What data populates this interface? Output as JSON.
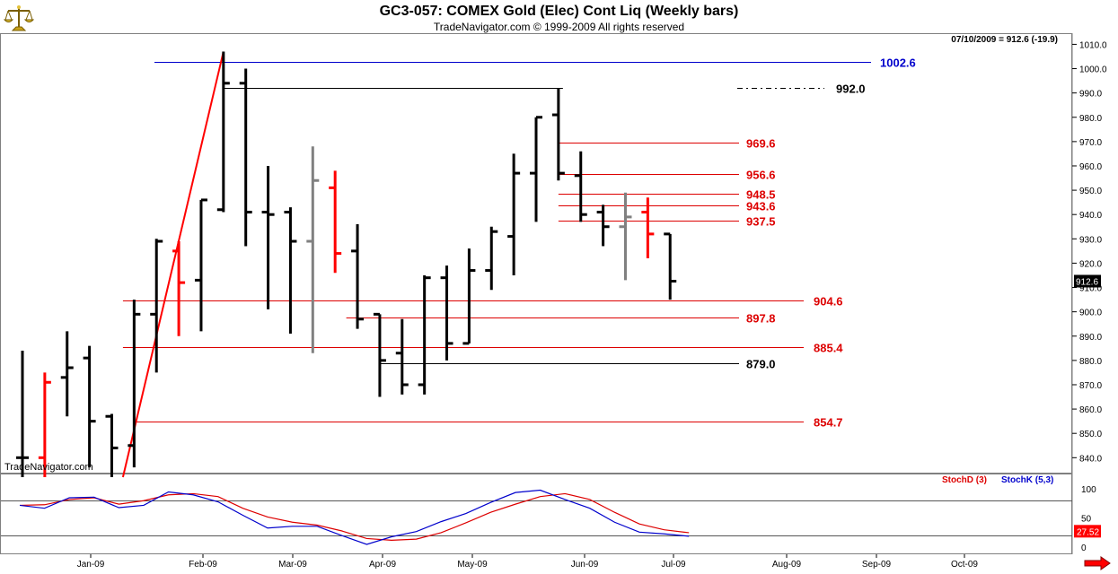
{
  "header": {
    "title": "GC3-057:  COMEX Gold (Elec) Cont Liq  (Weekly bars)",
    "subtitle": "TradeNavigator.com © 1999-2009 All rights reserved",
    "last_info": "07/10/2009 = 912.6 (-19.9)",
    "watermark": "TradeNavigator.com"
  },
  "colors": {
    "up": "#000000",
    "down": "#ff0000",
    "inside": "#808080",
    "blue": "#0000cc",
    "level_red": "#dd0000",
    "stochD": "#dd0000",
    "stochK": "#0000cc"
  },
  "chart_data": [
    {
      "type": "ohlc",
      "title": "GC3-057:  COMEX Gold (Elec) Cont Liq  (Weekly bars)",
      "ylim": [
        832,
        1012
      ],
      "y_ticks": [
        840,
        850,
        860,
        870,
        880,
        890,
        900,
        910,
        920,
        930,
        940,
        950,
        960,
        970,
        980,
        990,
        1000,
        1010
      ],
      "x_labels": [
        "Jan-09",
        "Feb-09",
        "Mar-09",
        "Apr-09",
        "May-09",
        "Jun-09",
        "Jul-09",
        "Aug-09",
        "Sep-09",
        "Oct-09"
      ],
      "last_price": "912.6",
      "bars": [
        {
          "week": 1,
          "open": 840,
          "high": 884,
          "low": 832,
          "close": 840,
          "color": "up"
        },
        {
          "week": 2,
          "open": 840,
          "high": 875,
          "low": 832,
          "close": 871,
          "color": "down"
        },
        {
          "week": 3,
          "open": 873,
          "high": 892,
          "low": 857,
          "close": 877,
          "color": "up"
        },
        {
          "week": 4,
          "open": 881,
          "high": 886,
          "low": 836,
          "close": 855,
          "color": "up"
        },
        {
          "week": 5,
          "open": 857,
          "high": 858,
          "low": 832,
          "close": 844,
          "color": "up"
        },
        {
          "week": 6,
          "open": 845,
          "high": 905,
          "low": 836,
          "close": 899,
          "color": "up"
        },
        {
          "week": 7,
          "open": 899,
          "high": 930,
          "low": 875,
          "close": 929,
          "color": "up"
        },
        {
          "week": 8,
          "open": 925,
          "high": 929,
          "low": 890,
          "close": 912,
          "color": "down"
        },
        {
          "week": 9,
          "open": 913,
          "high": 946,
          "low": 892,
          "close": 946,
          "color": "up"
        },
        {
          "week": 10,
          "open": 942,
          "high": 1007,
          "low": 941,
          "close": 994,
          "color": "up"
        },
        {
          "week": 11,
          "open": 994,
          "high": 1000,
          "low": 927,
          "close": 941,
          "color": "up"
        },
        {
          "week": 12,
          "open": 941,
          "high": 960,
          "low": 901,
          "close": 940,
          "color": "up"
        },
        {
          "week": 13,
          "open": 941,
          "high": 943,
          "low": 891,
          "close": 929,
          "color": "up"
        },
        {
          "week": 14,
          "open": 929,
          "high": 968,
          "low": 883,
          "close": 954,
          "color": "inside"
        },
        {
          "week": 15,
          "open": 951,
          "high": 958,
          "low": 916,
          "close": 924,
          "color": "down"
        },
        {
          "week": 16,
          "open": 925,
          "high": 936,
          "low": 893,
          "close": 897,
          "color": "up"
        },
        {
          "week": 17,
          "open": 899,
          "high": 899,
          "low": 865,
          "close": 880,
          "color": "up"
        },
        {
          "week": 18,
          "open": 883,
          "high": 897,
          "low": 866,
          "close": 870,
          "color": "up"
        },
        {
          "week": 19,
          "open": 870,
          "high": 915,
          "low": 866,
          "close": 914,
          "color": "up"
        },
        {
          "week": 20,
          "open": 914,
          "high": 919,
          "low": 880,
          "close": 887,
          "color": "up"
        },
        {
          "week": 21,
          "open": 887,
          "high": 926,
          "low": 887,
          "close": 917,
          "color": "up"
        },
        {
          "week": 22,
          "open": 917,
          "high": 935,
          "low": 909,
          "close": 933,
          "color": "up"
        },
        {
          "week": 23,
          "open": 931,
          "high": 965,
          "low": 915,
          "close": 957,
          "color": "up"
        },
        {
          "week": 24,
          "open": 957,
          "high": 980,
          "low": 937,
          "close": 980,
          "color": "up"
        },
        {
          "week": 25,
          "open": 981,
          "high": 992,
          "low": 954,
          "close": 957,
          "color": "up"
        },
        {
          "week": 26,
          "open": 956,
          "high": 966,
          "low": 937,
          "close": 940,
          "color": "up"
        },
        {
          "week": 27,
          "open": 941,
          "high": 944,
          "low": 927,
          "close": 935,
          "color": "up"
        },
        {
          "week": 28,
          "open": 935,
          "high": 949,
          "low": 913,
          "close": 939,
          "color": "inside"
        },
        {
          "week": 29,
          "open": 941,
          "high": 947,
          "low": 922,
          "close": 932,
          "color": "down"
        },
        {
          "week": 30,
          "open": 932,
          "high": 932,
          "low": 905,
          "close": 912.6,
          "color": "up"
        }
      ],
      "levels": [
        {
          "label": "1002.6",
          "value": 1002.6,
          "color": "blue"
        },
        {
          "label": "992.0",
          "value": 992.0,
          "color": "black"
        },
        {
          "label": "969.6",
          "value": 969.6,
          "color": "level_red"
        },
        {
          "label": "956.6",
          "value": 956.6,
          "color": "level_red"
        },
        {
          "label": "948.5",
          "value": 948.5,
          "color": "level_red"
        },
        {
          "label": "943.6",
          "value": 943.6,
          "color": "level_red"
        },
        {
          "label": "937.5",
          "value": 937.5,
          "color": "level_red"
        },
        {
          "label": "904.6",
          "value": 904.6,
          "color": "level_red"
        },
        {
          "label": "897.8",
          "value": 897.8,
          "color": "level_red"
        },
        {
          "label": "885.4",
          "value": 885.4,
          "color": "level_red"
        },
        {
          "label": "879.0",
          "value": 879.0,
          "color": "black"
        },
        {
          "label": "854.7",
          "value": 854.7,
          "color": "level_red"
        }
      ],
      "trendline": {
        "from_week": 5.5,
        "from_value": 832,
        "to_week": 10,
        "to_value": 1007
      }
    },
    {
      "type": "line",
      "title": "Stochastic",
      "ylim": [
        -12,
        125
      ],
      "y_ticks": [
        0,
        50,
        100
      ],
      "reference_lines": [
        20,
        80
      ],
      "last_value": "27.52",
      "series": [
        {
          "name": "StochD (3)",
          "color": "stochD",
          "values": [
            [
              1,
              72
            ],
            [
              3,
              73
            ],
            [
              5,
              82
            ],
            [
              7,
              85
            ],
            [
              9,
              74
            ],
            [
              11,
              80
            ],
            [
              13,
              90
            ],
            [
              15,
              92
            ],
            [
              17,
              87
            ],
            [
              19,
              67
            ],
            [
              21,
              52
            ],
            [
              23,
              43
            ],
            [
              25,
              38
            ],
            [
              27,
              28
            ],
            [
              29,
              15
            ],
            [
              31,
              12
            ],
            [
              33,
              14
            ],
            [
              35,
              25
            ],
            [
              37,
              42
            ],
            [
              39,
              60
            ],
            [
              41,
              74
            ],
            [
              43,
              87
            ],
            [
              45,
              92
            ],
            [
              47,
              82
            ],
            [
              49,
              60
            ],
            [
              51,
              40
            ],
            [
              53,
              30
            ],
            [
              55,
              25
            ]
          ]
        },
        {
          "name": "StochK (5,3)",
          "color": "stochK",
          "values": [
            [
              1,
              72
            ],
            [
              3,
              67
            ],
            [
              5,
              85
            ],
            [
              7,
              86
            ],
            [
              9,
              68
            ],
            [
              11,
              72
            ],
            [
              13,
              95
            ],
            [
              15,
              90
            ],
            [
              17,
              78
            ],
            [
              19,
              55
            ],
            [
              21,
              33
            ],
            [
              23,
              36
            ],
            [
              25,
              36
            ],
            [
              27,
              20
            ],
            [
              29,
              5
            ],
            [
              31,
              18
            ],
            [
              33,
              27
            ],
            [
              35,
              44
            ],
            [
              37,
              58
            ],
            [
              39,
              77
            ],
            [
              41,
              94
            ],
            [
              43,
              98
            ],
            [
              45,
              82
            ],
            [
              47,
              67
            ],
            [
              49,
              43
            ],
            [
              51,
              26
            ],
            [
              53,
              23
            ],
            [
              55,
              19
            ]
          ]
        }
      ]
    }
  ]
}
